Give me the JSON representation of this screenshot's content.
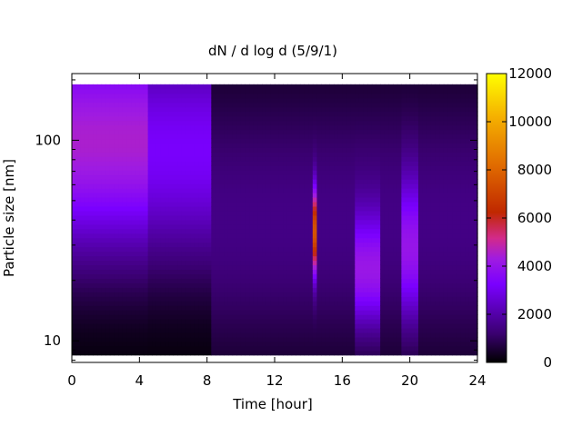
{
  "chart_data": {
    "type": "heatmap",
    "title": "dN / d log d (5/9/1)",
    "xlabel": "Time [hour]",
    "ylabel": "Particle size [nm]",
    "xlim": [
      0,
      24
    ],
    "x_ticks": [
      0,
      4,
      8,
      12,
      16,
      20,
      24
    ],
    "x_tick_labels": [
      "0",
      "4",
      "8",
      "12",
      "16",
      "20",
      "24"
    ],
    "y_scale": "log",
    "ylim": [
      7.8,
      215
    ],
    "y_ticks": [
      10,
      100
    ],
    "y_tick_labels": [
      "10",
      "100"
    ],
    "data_size_range": [
      8.5,
      190
    ],
    "colorbar": {
      "range": [
        0,
        12000
      ],
      "ticks": [
        0,
        2000,
        4000,
        6000,
        8000,
        10000,
        12000
      ],
      "tick_labels": [
        "0",
        "2000",
        "4000",
        "6000",
        "8000",
        "10000",
        "12000"
      ],
      "palette": [
        "#000000",
        "#3a0070",
        "#7a00ff",
        "#a01ce0",
        "#d22a8a",
        "#c02800",
        "#e06a00",
        "#f5b000",
        "#ffff00"
      ],
      "palette_stops": [
        0,
        0.1,
        0.27,
        0.36,
        0.43,
        0.52,
        0.68,
        0.85,
        1.0
      ]
    },
    "features": [
      {
        "t_start": 0,
        "t_end": 4.5,
        "mode_nm": 100,
        "peak": 4500,
        "width_log10": 0.42
      },
      {
        "t_start": 4.5,
        "t_end": 8.3,
        "mode_nm": 90,
        "peak": 3200,
        "width_log10": 0.42
      },
      {
        "t_start": 8.3,
        "t_end": 24,
        "mode_nm": 40,
        "peak": 1500,
        "width_log10": 0.5
      },
      {
        "t_start": 14.2,
        "t_end": 14.5,
        "mode_nm": 35,
        "peak": 6000,
        "width_log10": 0.15
      },
      {
        "t_start": 16.8,
        "t_end": 18.2,
        "mode_nm": 22,
        "peak": 2800,
        "width_log10": 0.2
      },
      {
        "t_start": 19.5,
        "t_end": 20.5,
        "mode_nm": 28,
        "peak": 2600,
        "width_log10": 0.25
      }
    ]
  }
}
